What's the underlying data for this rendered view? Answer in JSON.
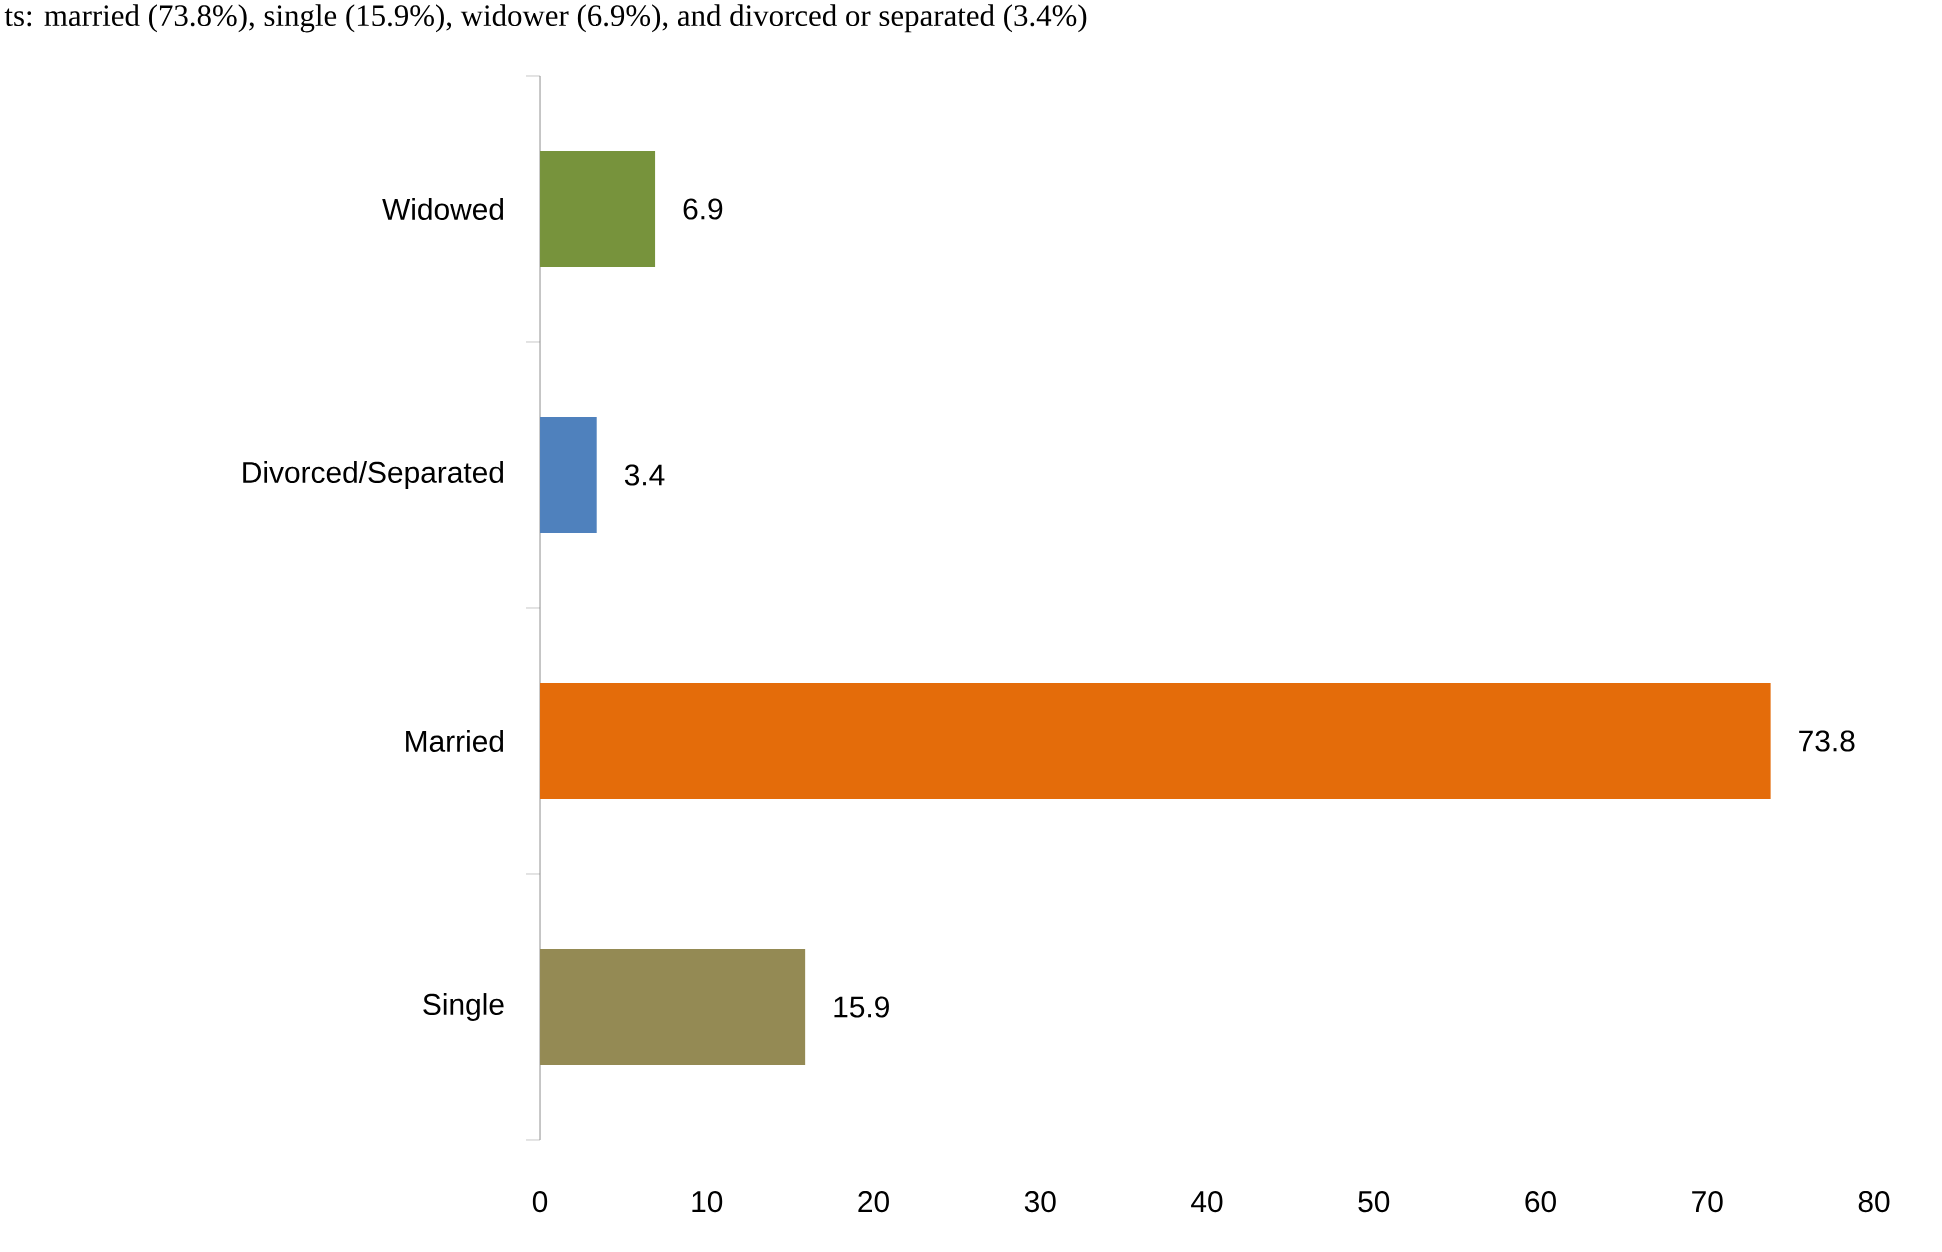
{
  "chart_data": {
    "type": "bar",
    "orientation": "horizontal",
    "annotations": [
      "ts: married (73.8%), single (15.9%), widower (6.9%), and divorced or separated (3.4%)"
    ],
    "categories": [
      "Widowed",
      "Divorced/Separated",
      "Married",
      "Single"
    ],
    "values": [
      6.9,
      3.4,
      73.8,
      15.9
    ],
    "colors": [
      "#77933c",
      "#4f81bd",
      "#e46c0a",
      "#948a54"
    ],
    "xlim": [
      0,
      80
    ],
    "xticks": [
      0,
      10,
      20,
      30,
      40,
      50,
      60,
      70,
      80
    ],
    "data_labels": true
  }
}
